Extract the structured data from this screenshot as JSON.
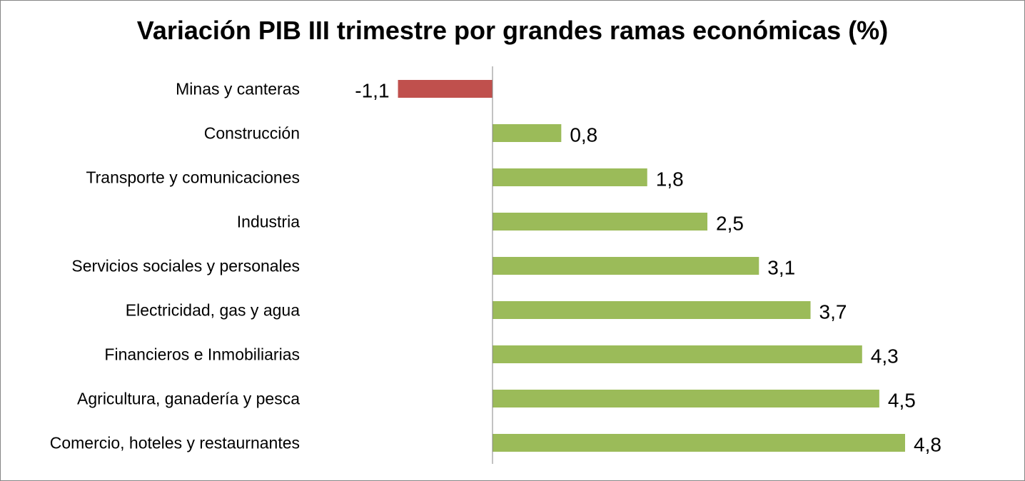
{
  "chart_data": {
    "type": "bar",
    "orientation": "horizontal",
    "title": "Variación PIB III trimestre por grandes ramas económicas (%)",
    "xlabel": "",
    "ylabel": "",
    "categories": [
      "Minas y canteras",
      "Construcción",
      "Transporte y comunicaciones",
      "Industria",
      "Servicios sociales y personales",
      "Electricidad, gas y agua",
      "Financieros e Inmobiliarias",
      "Agricultura, ganadería y pesca",
      "Comercio, hoteles y restaurnantes"
    ],
    "values": [
      -1.1,
      0.8,
      1.8,
      2.5,
      3.1,
      3.7,
      4.3,
      4.5,
      4.8
    ],
    "value_labels": [
      "-1,1",
      "0,8",
      "1,8",
      "2,5",
      "3,1",
      "3,7",
      "4,3",
      "4,5",
      "4,8"
    ],
    "xlim": [
      -1.1,
      4.8
    ],
    "grid": false,
    "legend": "none",
    "colors": {
      "negative": "#c0504d",
      "positive": "#9bbb59",
      "axis": "#868686"
    }
  }
}
